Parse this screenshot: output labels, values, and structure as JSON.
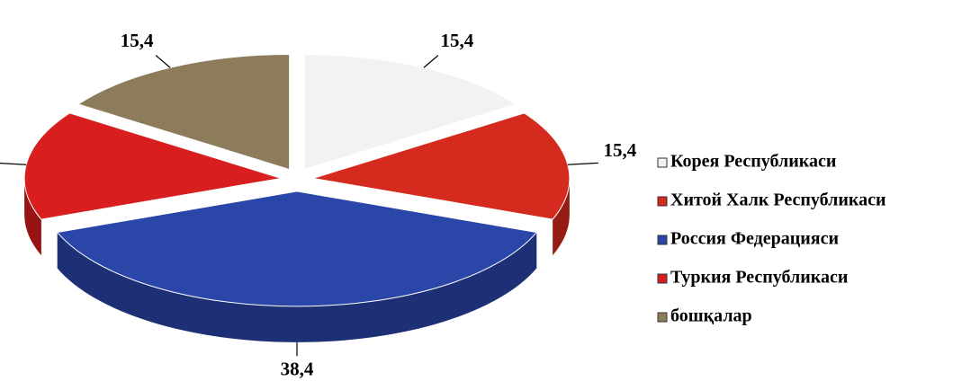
{
  "chart_data": {
    "type": "pie3d",
    "categories": [
      "Корея Республикаси",
      "Хитой Халк Республикаси",
      "Россия Федерацияси",
      "Туркия Республикаси",
      "бошқалар"
    ],
    "values": [
      15.4,
      15.4,
      38.4,
      15.4,
      15.4
    ],
    "value_labels": [
      "15,4",
      "15,4",
      "38,4",
      "15,4",
      "15,4"
    ],
    "colors": [
      "#f2f2f2",
      "#d52b1e",
      "#2a46a8",
      "#d81e1e",
      "#8c7c5c"
    ],
    "legend": "right"
  }
}
